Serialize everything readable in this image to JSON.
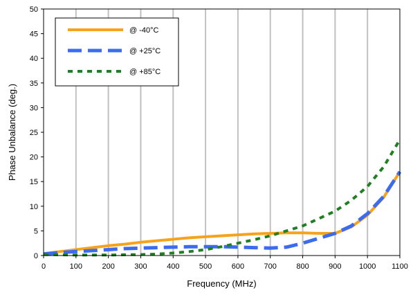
{
  "chart_data": {
    "type": "line",
    "title": "",
    "xlabel": "Frequency (MHz)",
    "ylabel": "Phase Unbalance (deg.)",
    "xlim": [
      0,
      1100
    ],
    "ylim": [
      0,
      50
    ],
    "x_ticks": [
      "0",
      "100",
      "200",
      "300",
      "400",
      "500",
      "600",
      "700",
      "800",
      "900",
      "1000",
      "1100"
    ],
    "y_ticks": [
      "0",
      "5",
      "10",
      "15",
      "20",
      "25",
      "30",
      "35",
      "40",
      "45",
      "50"
    ],
    "grid": "vertical",
    "legend_position": "top-left",
    "series": [
      {
        "name": "@ -40°C",
        "color": "#F7A21B",
        "style": "solid",
        "x": [
          0,
          50,
          100,
          150,
          200,
          250,
          300,
          350,
          400,
          450,
          500,
          550,
          600,
          650,
          700,
          750,
          800,
          850,
          900,
          950,
          1000,
          1050,
          1100
        ],
        "y": [
          0.4,
          0.8,
          1.2,
          1.6,
          2.0,
          2.3,
          2.7,
          3.0,
          3.3,
          3.6,
          3.8,
          4.0,
          4.2,
          4.4,
          4.5,
          4.6,
          4.6,
          4.5,
          4.5,
          5.8,
          8.2,
          11.8,
          17.0
        ]
      },
      {
        "name": "@ +25°C",
        "color": "#3B6CF0",
        "style": "dashed",
        "x": [
          0,
          50,
          100,
          150,
          200,
          250,
          300,
          350,
          400,
          450,
          500,
          550,
          600,
          650,
          700,
          750,
          800,
          850,
          900,
          950,
          1000,
          1050,
          1100
        ],
        "y": [
          0.3,
          0.6,
          0.8,
          1.0,
          1.2,
          1.4,
          1.5,
          1.6,
          1.7,
          1.8,
          1.8,
          1.8,
          1.7,
          1.6,
          1.5,
          1.7,
          2.5,
          3.5,
          4.5,
          6.0,
          8.5,
          12.0,
          17.0
        ]
      },
      {
        "name": "@ +85°C",
        "color": "#1E8020",
        "style": "dotted",
        "x": [
          0,
          50,
          100,
          150,
          200,
          250,
          300,
          350,
          400,
          450,
          500,
          550,
          600,
          650,
          700,
          750,
          800,
          850,
          900,
          950,
          1000,
          1050,
          1100
        ],
        "y": [
          0.2,
          0.15,
          0.1,
          0.1,
          0.1,
          0.15,
          0.2,
          0.3,
          0.5,
          0.8,
          1.2,
          1.8,
          2.5,
          3.2,
          4.0,
          5.0,
          6.0,
          7.5,
          9.0,
          11.2,
          14.0,
          18.0,
          23.5
        ]
      }
    ]
  }
}
